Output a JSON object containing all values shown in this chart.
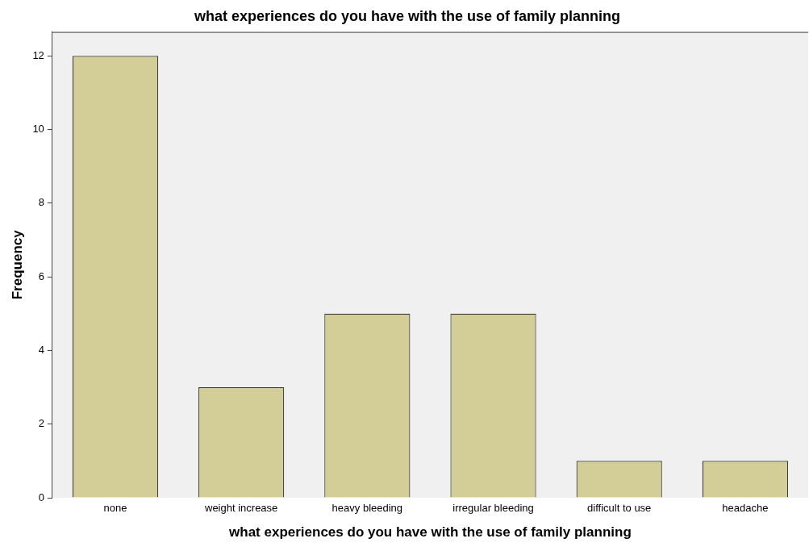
{
  "chart_data": {
    "type": "bar",
    "title": "what experiences do you have with the use of family planning",
    "xlabel": "what experiences do you have with the use of family planning",
    "ylabel": "Frequency",
    "categories": [
      "none",
      "weight increase",
      "heavy bleeding",
      "irregular bleeding",
      "difficult to use",
      "headache"
    ],
    "values": [
      12,
      3,
      5,
      5,
      1,
      1
    ],
    "color": "#d3ce97",
    "ylim": [
      0,
      12.65
    ],
    "yticks": [
      0,
      2,
      4,
      6,
      8,
      10,
      12
    ],
    "grid": false,
    "legend": false
  }
}
